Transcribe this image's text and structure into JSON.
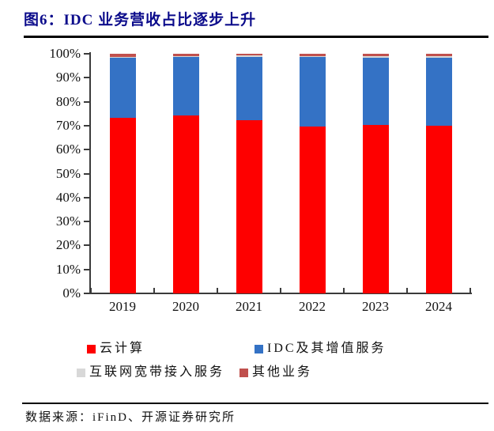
{
  "header": {
    "title": "图6：IDC 业务营收占比逐步上升"
  },
  "chart_data": {
    "type": "bar",
    "stacked": true,
    "title": "图6：IDC 业务营收占比逐步上升",
    "categories": [
      "2019",
      "2020",
      "2021",
      "2022",
      "2023",
      "2024"
    ],
    "series": [
      {
        "name": "云计算",
        "color": "#fe0000",
        "values": [
          73.2,
          74.1,
          72.4,
          69.7,
          70.4,
          70.0
        ]
      },
      {
        "name": "IDC及其增值服务",
        "color": "#3472c5",
        "values": [
          25.3,
          24.5,
          26.2,
          29.0,
          28.1,
          28.5
        ]
      },
      {
        "name": "互联网宽带接入服务",
        "color": "#d8d8d8",
        "values": [
          0.3,
          0.5,
          0.8,
          0.4,
          0.4,
          0.6
        ]
      },
      {
        "name": "其他业务",
        "color": "#c0504d",
        "values": [
          1.2,
          0.9,
          0.6,
          0.9,
          1.1,
          0.9
        ]
      }
    ],
    "ylabel": "",
    "xlabel": "",
    "ylim": [
      0,
      100
    ],
    "ytick_step": 10,
    "ytick_suffix": "%",
    "grid": false,
    "legend_position": "bottom"
  },
  "footer": {
    "source": "数据来源：iFinD、开源证券研究所"
  },
  "colors": {
    "title": "#0b0b8b",
    "axis": "#3b3b3b",
    "rule": "#000000"
  }
}
